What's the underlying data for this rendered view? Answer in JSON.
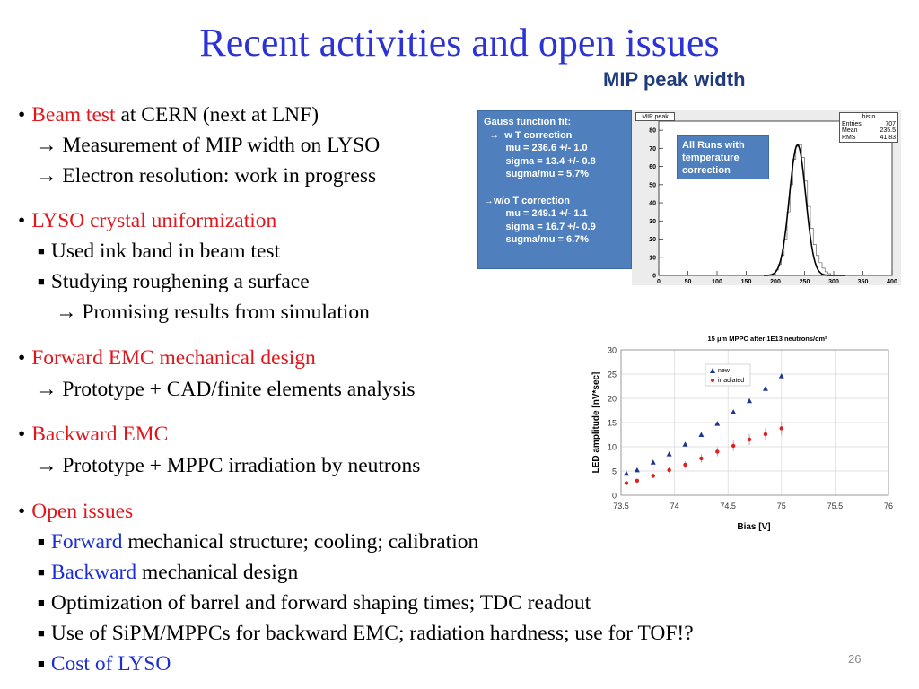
{
  "title": "Recent activities and open issues",
  "mip_label": "MIP peak width",
  "slide_number": "26",
  "bullets": {
    "beam_head": "Beam test",
    "beam_tail": " at CERN (next at LNF)",
    "beam_1": "→ Measurement of MIP width on LYSO",
    "beam_2": "→ Electron resolution: work in progress",
    "lyso_head": "LYSO crystal uniformization",
    "lyso_1": "Used ink band in beam test",
    "lyso_2": "Studying roughening a surface",
    "lyso_3": "→ Promising results from simulation",
    "fwd_head": "Forward EMC mechanical design",
    "fwd_1": "→ Prototype + CAD/finite elements analysis",
    "bwd_head": "Backward EMC",
    "bwd_1": "→ Prototype + MPPC irradiation by neutrons",
    "open_head": "Open issues",
    "open_1_a": "Forward",
    "open_1_b": " mechanical structure; cooling; calibration",
    "open_2_a": "Backward",
    "open_2_b": " mechanical design",
    "open_3": "Optimization of barrel and forward shaping times; TDC readout",
    "open_4": "Use of SiPM/MPPCs for backward EMC; radiation hardness; use for TOF!?",
    "open_5": "Cost of LYSO"
  },
  "mip_plot": {
    "gauss_box": [
      "Gauss function  fit:",
      "  →  w T correction",
      "        mu = 236.6 +/- 1.0",
      "        sigma = 13.4 +/- 0.8",
      "        sugma/mu = 5.7%",
      "",
      "→w/o T correction",
      "        mu = 249.1 +/- 1.1",
      "        sigma = 16.7 +/- 0.9",
      "        sugma/mu = 6.7%"
    ],
    "allruns_box": [
      "All Runs with",
      "temperature",
      "correction"
    ],
    "histo_title": "MIP peak",
    "stats": {
      "name": "histo",
      "rows": [
        [
          "Entries",
          "707"
        ],
        [
          "Mean",
          "235.5"
        ],
        [
          "RMS",
          "41.83"
        ]
      ]
    }
  },
  "chart_data": [
    {
      "type": "line",
      "title": "MIP peak",
      "xlim": [
        0,
        400
      ],
      "ylim": [
        0,
        85
      ],
      "x_ticks": [
        0,
        50,
        100,
        150,
        200,
        250,
        300,
        350,
        400
      ],
      "y_ticks": [
        0,
        10,
        20,
        30,
        40,
        50,
        60,
        70,
        80
      ],
      "series": [
        {
          "x": [
            195,
            200,
            205,
            210,
            215,
            220,
            225,
            230,
            235,
            240,
            245,
            250,
            255,
            260,
            265,
            270,
            275,
            280,
            285,
            290,
            295
          ],
          "values": [
            1,
            3,
            6,
            11,
            20,
            35,
            50,
            64,
            71,
            72,
            65,
            52,
            38,
            26,
            17,
            11,
            7,
            4,
            2,
            1,
            0
          ]
        }
      ]
    },
    {
      "type": "scatter",
      "title": "15 μm MPPC after 1E13 neutrons/cm²",
      "xlabel": "Bias [V]",
      "ylabel": "LED amplitude [nV*sec]",
      "xlim": [
        73.5,
        76
      ],
      "ylim": [
        0,
        30
      ],
      "x_ticks": [
        "73.5",
        "74",
        "74.5",
        "75",
        "75.5",
        "76"
      ],
      "y_ticks": [
        "0",
        "5",
        "10",
        "15",
        "20",
        "25",
        "30"
      ],
      "legend_position": "top-left",
      "series": [
        {
          "name": "new",
          "color": "#1f3690",
          "marker": "triangle",
          "x": [
            73.55,
            73.65,
            73.8,
            73.95,
            74.1,
            74.25,
            74.4,
            74.55,
            74.7,
            74.85,
            75.0
          ],
          "values": [
            4.5,
            5.2,
            6.8,
            8.5,
            10.5,
            12.5,
            14.8,
            17.2,
            19.5,
            22.0,
            24.6
          ]
        },
        {
          "name": "irradiated",
          "color": "#e01f1f",
          "marker": "circle",
          "x": [
            73.55,
            73.65,
            73.8,
            73.95,
            74.1,
            74.25,
            74.4,
            74.55,
            74.7,
            74.85,
            75.0
          ],
          "values": [
            2.5,
            3.0,
            4.0,
            5.2,
            6.3,
            7.6,
            9.0,
            10.2,
            11.5,
            12.6,
            13.8
          ]
        }
      ]
    }
  ]
}
